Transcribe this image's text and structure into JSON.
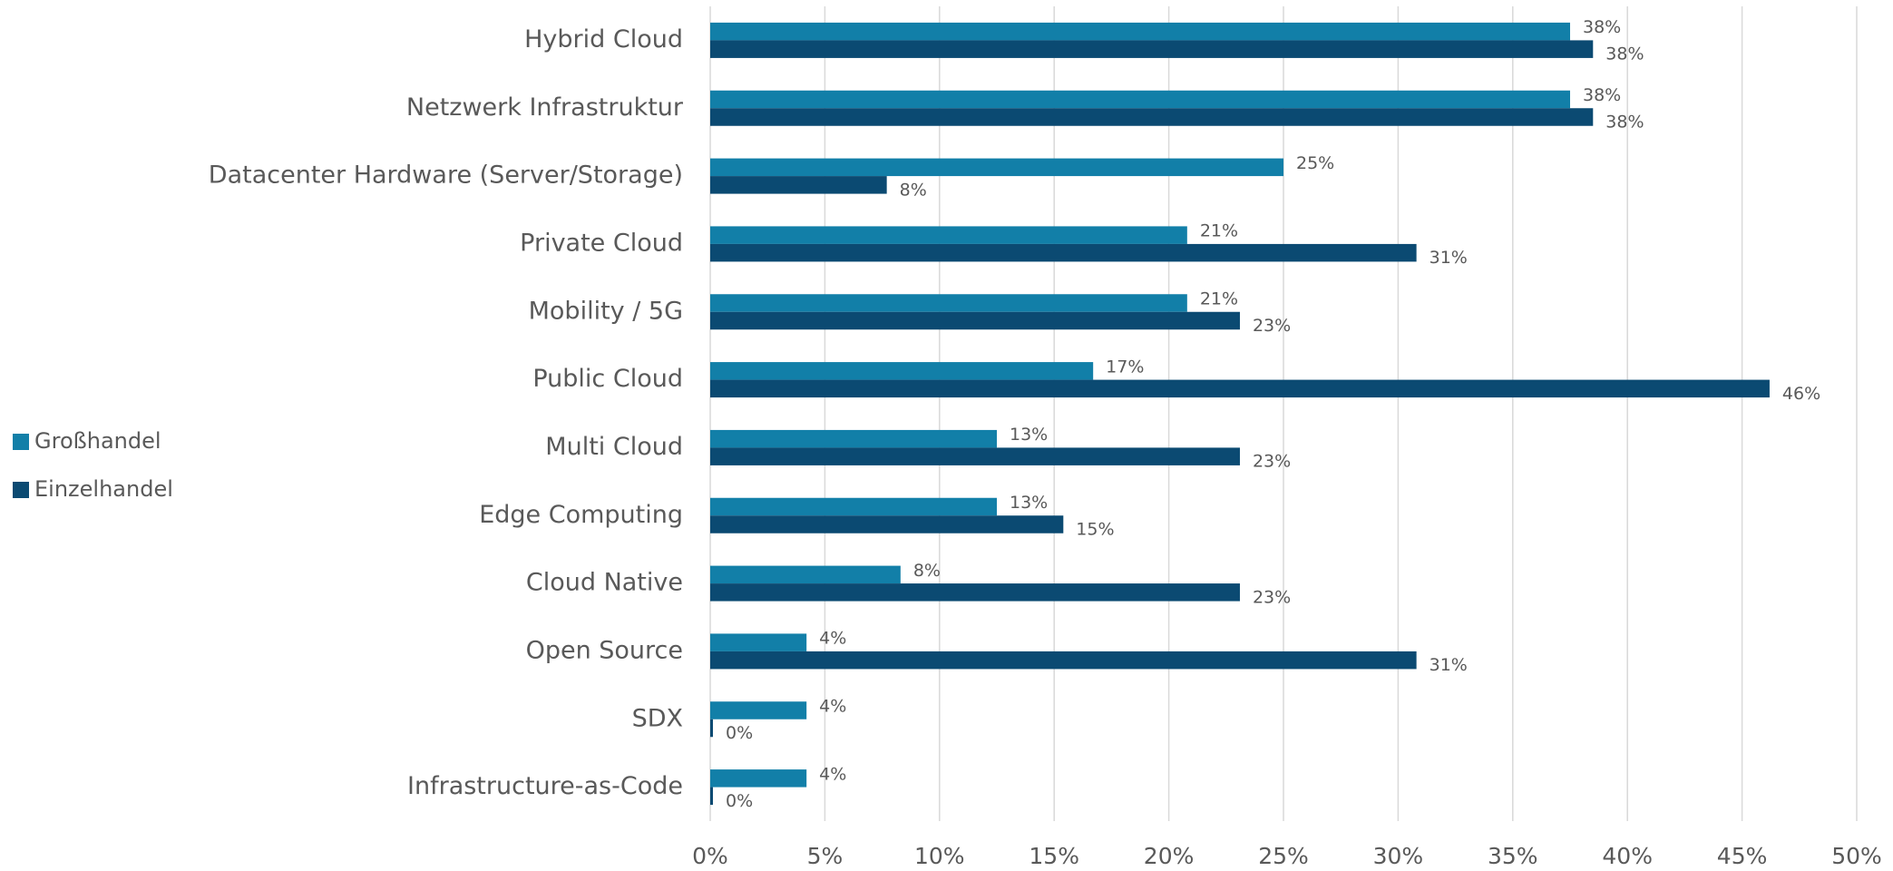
{
  "chart_data": {
    "type": "barh",
    "categories": [
      "Hybrid Cloud",
      "Netzwerk Infrastruktur",
      "Datacenter Hardware (Server/Storage)",
      "Private Cloud",
      "Mobility / 5G",
      "Public Cloud",
      "Multi Cloud",
      "Edge Computing",
      "Cloud Native",
      "Open Source",
      "SDX",
      "Infrastructure-as-Code"
    ],
    "series": [
      {
        "name": "Großhandel",
        "color": "#127fa8",
        "values": [
          37.5,
          37.5,
          25,
          20.8,
          20.8,
          16.7,
          12.5,
          12.5,
          8.3,
          4.2,
          4.2,
          4.2
        ],
        "value_labels": [
          "38%",
          "38%",
          "25%",
          "21%",
          "21%",
          "17%",
          "13%",
          "13%",
          "8%",
          "4%",
          "4%",
          "4%"
        ]
      },
      {
        "name": "Einzelhandel",
        "color": "#0b4a72",
        "values": [
          38.5,
          38.5,
          7.7,
          30.8,
          23.1,
          46.2,
          23.1,
          15.4,
          23.1,
          30.8,
          0,
          0
        ],
        "value_labels": [
          "38%",
          "38%",
          "8%",
          "31%",
          "23%",
          "46%",
          "23%",
          "15%",
          "23%",
          "31%",
          "0%",
          "0%"
        ]
      }
    ],
    "xlim": [
      0,
      50
    ],
    "xticks": [
      {
        "value": 0,
        "label": "0%"
      },
      {
        "value": 5,
        "label": "5%"
      },
      {
        "value": 10,
        "label": "10%"
      },
      {
        "value": 15,
        "label": "15%"
      },
      {
        "value": 20,
        "label": "20%"
      },
      {
        "value": 25,
        "label": "25%"
      },
      {
        "value": 30,
        "label": "30%"
      },
      {
        "value": 35,
        "label": "35%"
      },
      {
        "value": 40,
        "label": "40%"
      },
      {
        "value": 45,
        "label": "45%"
      },
      {
        "value": 50,
        "label": "50%"
      }
    ],
    "grid": true,
    "legend": "left"
  }
}
